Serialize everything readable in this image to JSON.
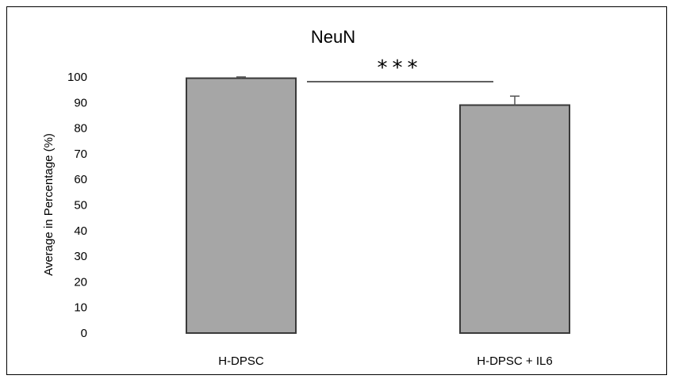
{
  "chart_data": {
    "type": "bar",
    "title": "NeuN",
    "xlabel": "",
    "ylabel": "Average in Percentage (%)",
    "categories": [
      "H-DPSC",
      "H-DPSC + IL6"
    ],
    "values": [
      99.5,
      89
    ],
    "errors": [
      0.5,
      3.5
    ],
    "ylim": [
      0,
      100
    ],
    "yticks": [
      0,
      10,
      20,
      30,
      40,
      50,
      60,
      70,
      80,
      90,
      100
    ],
    "significance": "***",
    "grid": false,
    "bar_color": "#a6a6a6",
    "bar_edge_color": "#3a3a3a"
  }
}
